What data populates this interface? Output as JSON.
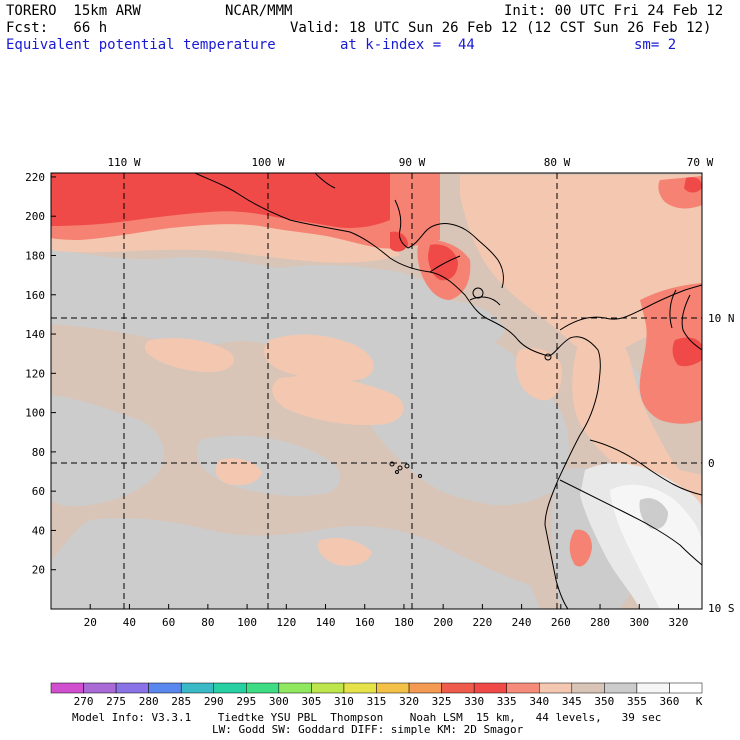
{
  "header": {
    "model": "TORERO  15km ARW",
    "center": "NCAR/MMM",
    "init": "Init: 00 UTC Fri 24 Feb 12",
    "fcst": "Fcst:   66 h",
    "valid": "Valid: 18 UTC Sun 26 Feb 12 (12 CST Sun 26 Feb 12)",
    "field": "Equivalent potential temperature",
    "level": "at k-index =  44",
    "smooth": "sm= 2"
  },
  "map": {
    "lon_labels": [
      "110 W",
      "100 W",
      "90 W",
      "80 W",
      "70 W"
    ],
    "lat_labels": [
      "10 N",
      "0",
      "10 S"
    ],
    "x_ticks": [
      "20",
      "40",
      "60",
      "80",
      "100",
      "120",
      "140",
      "160",
      "180",
      "200",
      "220",
      "240",
      "260",
      "280",
      "300",
      "320"
    ],
    "y_ticks": [
      "20",
      "40",
      "60",
      "80",
      "100",
      "120",
      "140",
      "160",
      "180",
      "200",
      "220"
    ],
    "colors": {
      "c330": "#f04a48",
      "c335": "#f58272",
      "c340": "#f4c8b0",
      "c345": "#d9c4b8",
      "c350": "#cccccc",
      "c355": "#e8e8e8",
      "c360": "#f6f6f6"
    }
  },
  "colorbar": {
    "labels": [
      "270",
      "275",
      "280",
      "285",
      "290",
      "295",
      "300",
      "305",
      "310",
      "315",
      "320",
      "325",
      "330",
      "335",
      "340",
      "345",
      "350",
      "355",
      "360"
    ],
    "unit": "K",
    "colors": [
      "#cf4fcf",
      "#a96ad6",
      "#8a73e6",
      "#5a87ee",
      "#3ab9c7",
      "#27cfa2",
      "#3fdc86",
      "#8fe85e",
      "#bde64c",
      "#e6e34a",
      "#f3c148",
      "#f59a55",
      "#f05c4c",
      "#f04a48",
      "#f58c7a",
      "#f4c8b0",
      "#d9c4b8",
      "#cccccc",
      "#f6f6f6"
    ]
  },
  "footer": {
    "line1": "Model Info: V3.3.1    Tiedtke YSU PBL  Thompson    Noah LSM  15 km,   44 levels,   39 sec",
    "line2": "LW: Godd SW: Goddard DIFF: simple KM: 2D Smagor"
  }
}
